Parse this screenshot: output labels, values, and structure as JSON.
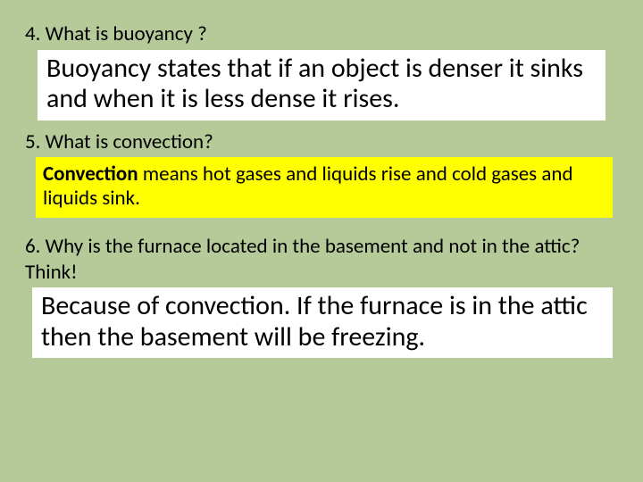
{
  "background_color": "#b5c999",
  "answer_bg": "#ffffff",
  "highlight_bg": "#ffff00",
  "text_color": "#000000",
  "q4": {
    "question": "4. What is buoyancy ?",
    "answer": "Buoyancy states that if an object is denser it sinks and when it is less dense it rises."
  },
  "q5": {
    "question": "5. What is  convection?",
    "answer_bold": "Convection",
    "answer_rest": " means hot  gases and liquids rise and cold gases and liquids sink."
  },
  "q6": {
    "question": "6. Why is the furnace  located in the basement and not in the attic? Think!",
    "answer": "Because of convection. If the furnace is in the attic then the basement will be freezing."
  }
}
